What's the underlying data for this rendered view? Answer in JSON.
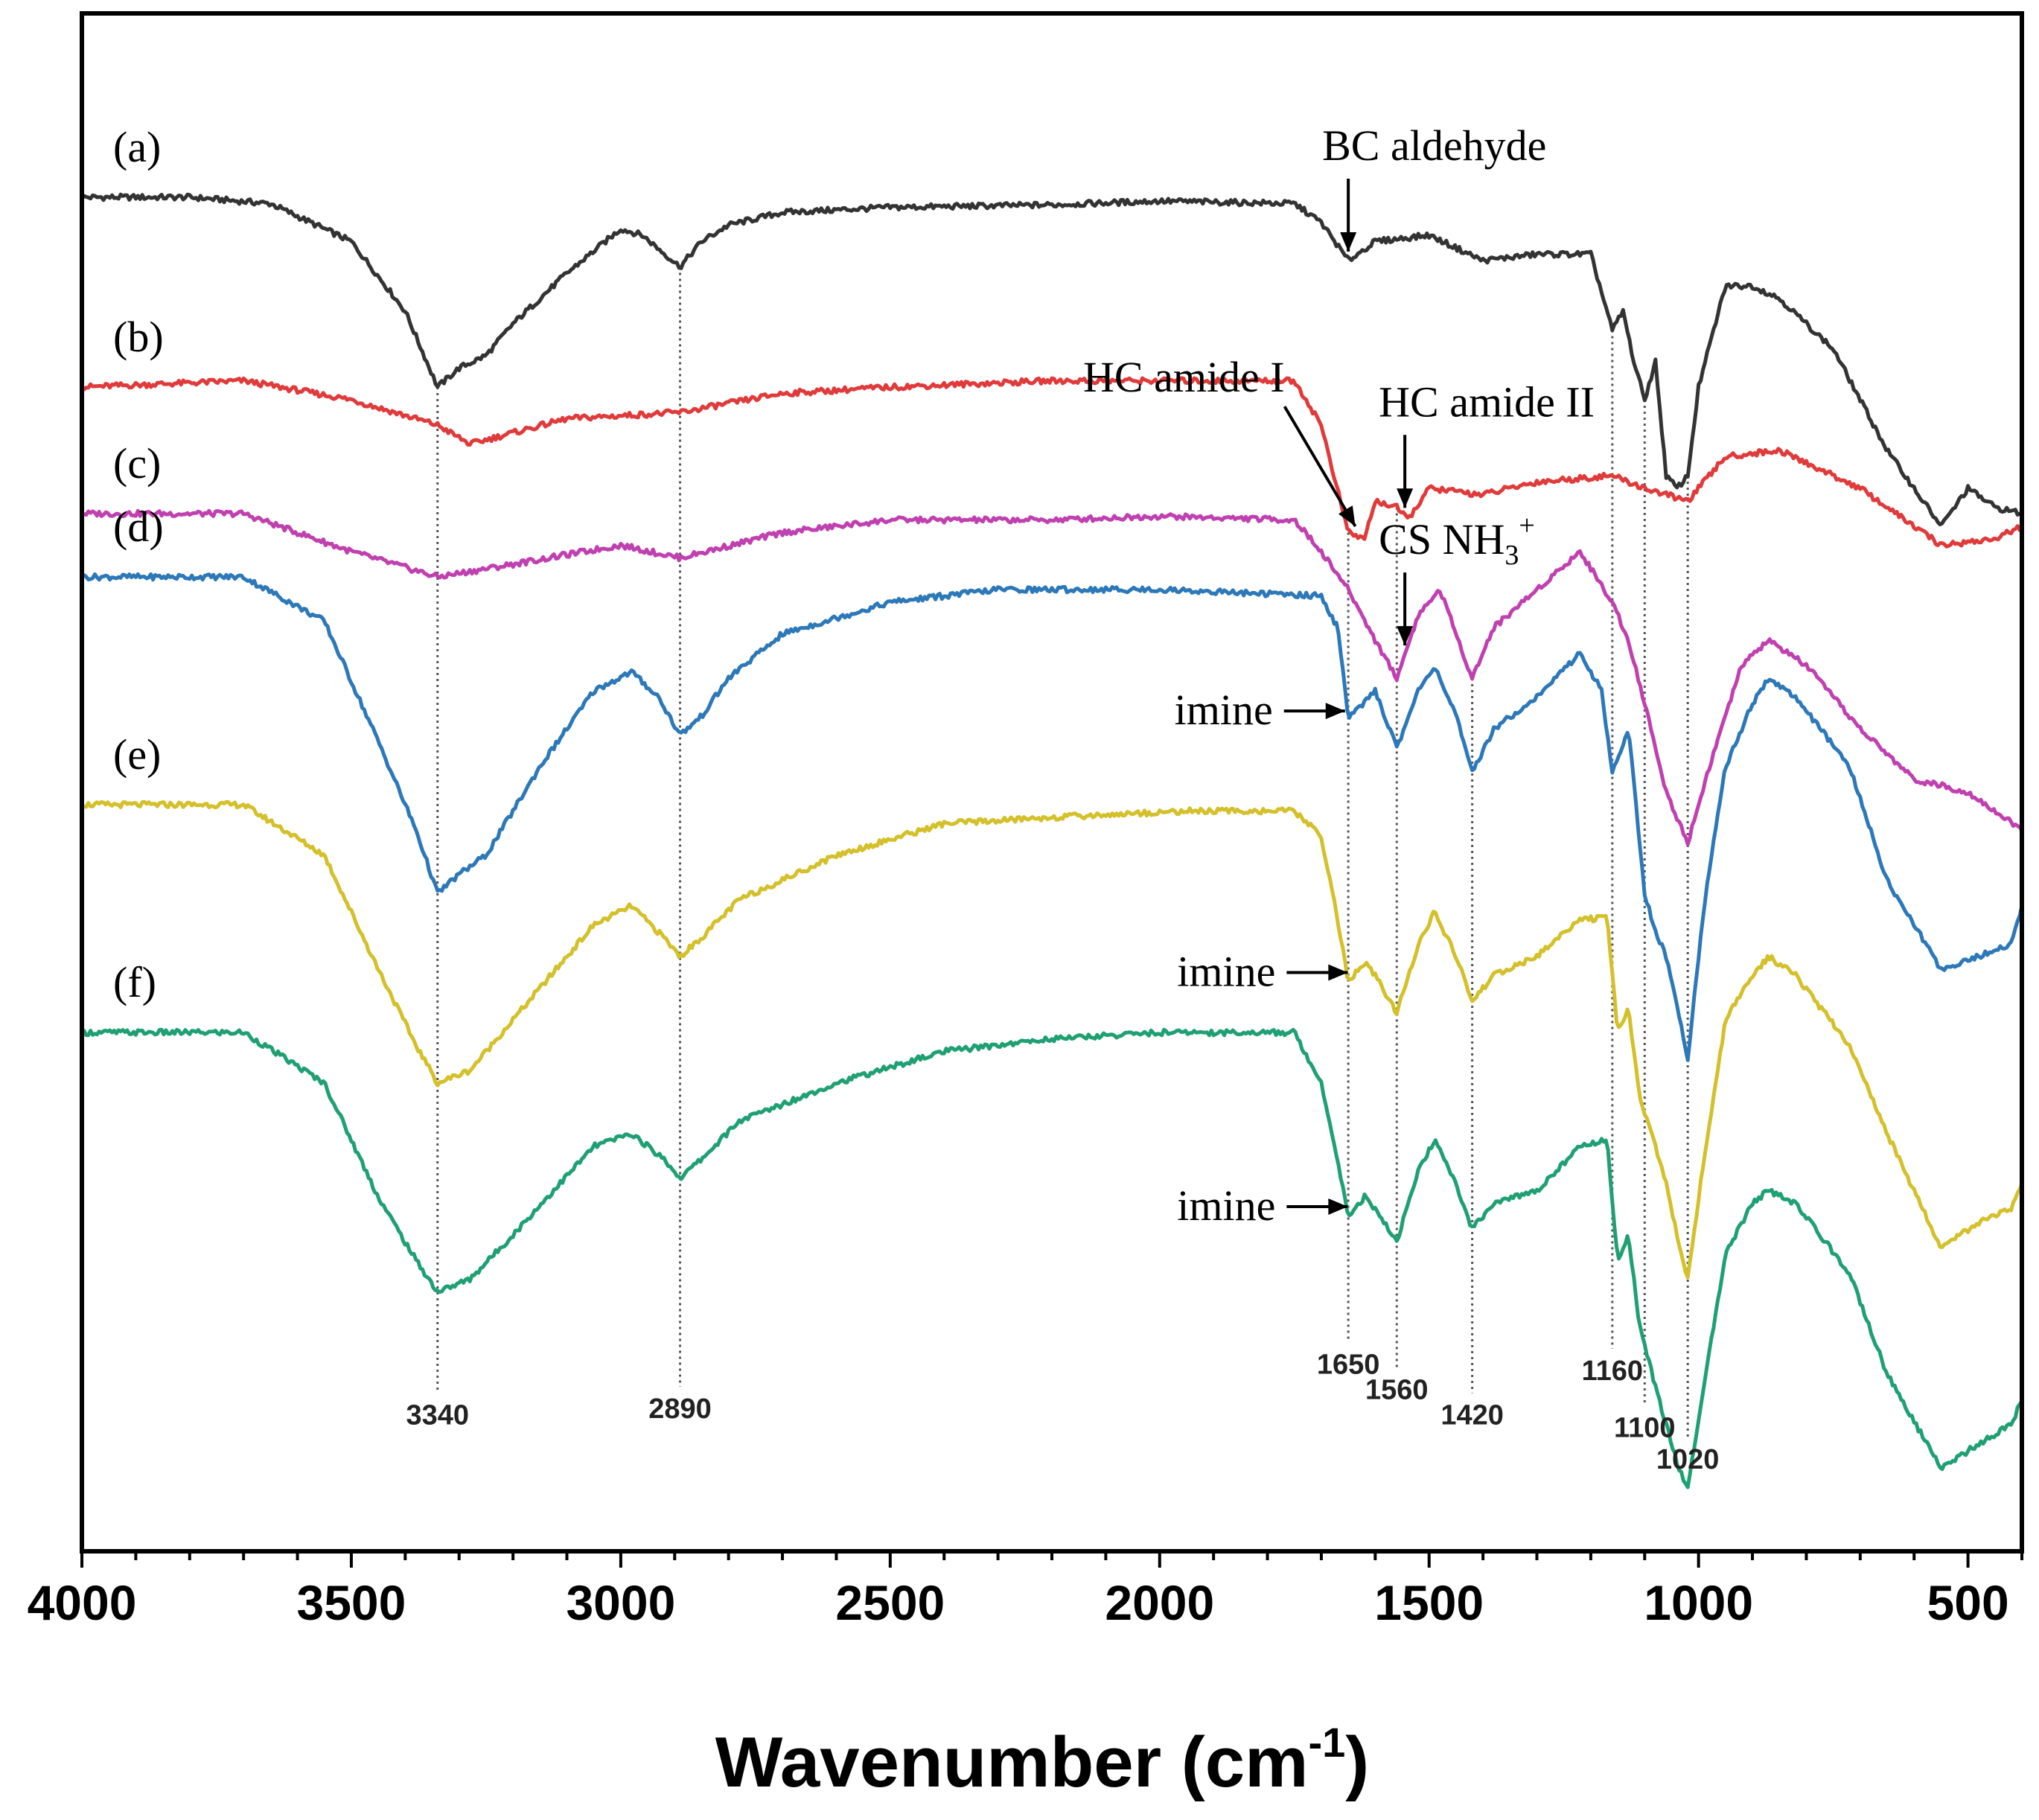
{
  "chart_data": {
    "type": "line",
    "title": "",
    "xlabel": "Wavenumber (cm",
    "xlabel_sup": "-1",
    "xlabel_close": ")",
    "ylabel": "",
    "xlim": [
      4000,
      400
    ],
    "x_ticks": [
      4000,
      3500,
      3000,
      2500,
      2000,
      1500,
      1000,
      500
    ],
    "grid": false,
    "series": [
      {
        "name": "(a)",
        "color": "#333333",
        "offset": 0.5,
        "points": [
          [
            4000,
            0
          ],
          [
            3800,
            0
          ],
          [
            3650,
            -0.05
          ],
          [
            3500,
            -0.35
          ],
          [
            3400,
            -0.9
          ],
          [
            3340,
            -1.5
          ],
          [
            3300,
            -1.35
          ],
          [
            3250,
            -1.25
          ],
          [
            3200,
            -1.0
          ],
          [
            3100,
            -0.6
          ],
          [
            3000,
            -0.25
          ],
          [
            2960,
            -0.3
          ],
          [
            2890,
            -0.55
          ],
          [
            2850,
            -0.35
          ],
          [
            2800,
            -0.22
          ],
          [
            2700,
            -0.12
          ],
          [
            2500,
            -0.08
          ],
          [
            2200,
            -0.06
          ],
          [
            2000,
            -0.03
          ],
          [
            1750,
            -0.05
          ],
          [
            1700,
            -0.2
          ],
          [
            1650,
            -0.5
          ],
          [
            1600,
            -0.35
          ],
          [
            1500,
            -0.3
          ],
          [
            1400,
            -0.5
          ],
          [
            1300,
            -0.45
          ],
          [
            1200,
            -0.45
          ],
          [
            1160,
            -1.05
          ],
          [
            1140,
            -0.9
          ],
          [
            1120,
            -1.3
          ],
          [
            1100,
            -1.6
          ],
          [
            1080,
            -1.3
          ],
          [
            1060,
            -2.2
          ],
          [
            1040,
            -2.3
          ],
          [
            1020,
            -2.2
          ],
          [
            1000,
            -1.5
          ],
          [
            950,
            -0.7
          ],
          [
            900,
            -0.7
          ],
          [
            850,
            -0.8
          ],
          [
            750,
            -1.2
          ],
          [
            650,
            -2.0
          ],
          [
            550,
            -2.6
          ],
          [
            500,
            -2.3
          ],
          [
            450,
            -2.45
          ],
          [
            400,
            -2.5
          ]
        ]
      },
      {
        "name": "(b)",
        "color": "#e03a3a",
        "offset": 2.0,
        "points": [
          [
            4000,
            0
          ],
          [
            3700,
            0.05
          ],
          [
            3500,
            -0.1
          ],
          [
            3340,
            -0.3
          ],
          [
            3280,
            -0.45
          ],
          [
            3100,
            -0.25
          ],
          [
            2890,
            -0.2
          ],
          [
            2700,
            -0.05
          ],
          [
            2500,
            0
          ],
          [
            2200,
            0.05
          ],
          [
            2000,
            0.05
          ],
          [
            1750,
            0.05
          ],
          [
            1700,
            -0.3
          ],
          [
            1650,
            -1.15
          ],
          [
            1620,
            -1.2
          ],
          [
            1600,
            -0.9
          ],
          [
            1560,
            -0.95
          ],
          [
            1540,
            -1.05
          ],
          [
            1500,
            -0.8
          ],
          [
            1400,
            -0.85
          ],
          [
            1300,
            -0.75
          ],
          [
            1160,
            -0.7
          ],
          [
            1100,
            -0.8
          ],
          [
            1020,
            -0.9
          ],
          [
            950,
            -0.55
          ],
          [
            850,
            -0.5
          ],
          [
            700,
            -0.8
          ],
          [
            550,
            -1.25
          ],
          [
            450,
            -1.2
          ],
          [
            400,
            -1.1
          ]
        ]
      },
      {
        "name": "(c)",
        "color": "#c040b0",
        "offset": 3.0,
        "points": [
          [
            4000,
            0
          ],
          [
            3700,
            0
          ],
          [
            3500,
            -0.3
          ],
          [
            3340,
            -0.5
          ],
          [
            3200,
            -0.4
          ],
          [
            3000,
            -0.25
          ],
          [
            2890,
            -0.35
          ],
          [
            2700,
            -0.15
          ],
          [
            2500,
            -0.05
          ],
          [
            2200,
            -0.05
          ],
          [
            2000,
            -0.02
          ],
          [
            1750,
            -0.05
          ],
          [
            1700,
            -0.3
          ],
          [
            1650,
            -0.6
          ],
          [
            1600,
            -1.0
          ],
          [
            1560,
            -1.3
          ],
          [
            1520,
            -0.8
          ],
          [
            1480,
            -0.6
          ],
          [
            1420,
            -1.3
          ],
          [
            1380,
            -0.9
          ],
          [
            1300,
            -0.6
          ],
          [
            1220,
            -0.3
          ],
          [
            1160,
            -0.7
          ],
          [
            1130,
            -1.0
          ],
          [
            1100,
            -1.5
          ],
          [
            1060,
            -2.2
          ],
          [
            1020,
            -2.6
          ],
          [
            980,
            -2.0
          ],
          [
            920,
            -1.2
          ],
          [
            870,
            -1.0
          ],
          [
            800,
            -1.2
          ],
          [
            700,
            -1.7
          ],
          [
            600,
            -2.1
          ],
          [
            500,
            -2.2
          ],
          [
            450,
            -2.35
          ],
          [
            400,
            -2.5
          ]
        ]
      },
      {
        "name": "(d)",
        "color": "#2c78b8",
        "offset": 3.5,
        "points": [
          [
            4000,
            0
          ],
          [
            3700,
            0
          ],
          [
            3550,
            -0.35
          ],
          [
            3450,
            -1.3
          ],
          [
            3380,
            -2.0
          ],
          [
            3340,
            -2.5
          ],
          [
            3300,
            -2.35
          ],
          [
            3250,
            -2.2
          ],
          [
            3150,
            -1.5
          ],
          [
            3050,
            -0.9
          ],
          [
            2980,
            -0.75
          ],
          [
            2930,
            -0.95
          ],
          [
            2890,
            -1.25
          ],
          [
            2850,
            -1.1
          ],
          [
            2800,
            -0.8
          ],
          [
            2700,
            -0.45
          ],
          [
            2500,
            -0.2
          ],
          [
            2300,
            -0.1
          ],
          [
            2000,
            -0.1
          ],
          [
            1700,
            -0.15
          ],
          [
            1670,
            -0.4
          ],
          [
            1650,
            -1.1
          ],
          [
            1620,
            -1.0
          ],
          [
            1600,
            -0.9
          ],
          [
            1560,
            -1.35
          ],
          [
            1520,
            -0.9
          ],
          [
            1490,
            -0.7
          ],
          [
            1450,
            -1.1
          ],
          [
            1420,
            -1.55
          ],
          [
            1380,
            -1.2
          ],
          [
            1300,
            -0.95
          ],
          [
            1220,
            -0.6
          ],
          [
            1180,
            -0.9
          ],
          [
            1160,
            -1.55
          ],
          [
            1130,
            -1.2
          ],
          [
            1100,
            -2.5
          ],
          [
            1080,
            -2.8
          ],
          [
            1060,
            -3.0
          ],
          [
            1040,
            -3.4
          ],
          [
            1020,
            -3.8
          ],
          [
            990,
            -2.6
          ],
          [
            950,
            -1.5
          ],
          [
            900,
            -1.0
          ],
          [
            870,
            -0.8
          ],
          [
            820,
            -0.95
          ],
          [
            720,
            -1.5
          ],
          [
            650,
            -2.4
          ],
          [
            550,
            -3.1
          ],
          [
            480,
            -3.0
          ],
          [
            420,
            -2.9
          ],
          [
            400,
            -2.6
          ]
        ]
      },
      {
        "name": "(e)",
        "color": "#d4c02a",
        "offset": 5.3,
        "points": [
          [
            4000,
            0
          ],
          [
            3700,
            0
          ],
          [
            3550,
            -0.4
          ],
          [
            3450,
            -1.3
          ],
          [
            3380,
            -1.9
          ],
          [
            3340,
            -2.2
          ],
          [
            3280,
            -2.1
          ],
          [
            3200,
            -1.7
          ],
          [
            3050,
            -0.95
          ],
          [
            2980,
            -0.8
          ],
          [
            2920,
            -1.05
          ],
          [
            2890,
            -1.2
          ],
          [
            2850,
            -1.05
          ],
          [
            2780,
            -0.75
          ],
          [
            2600,
            -0.4
          ],
          [
            2400,
            -0.15
          ],
          [
            2200,
            -0.1
          ],
          [
            1950,
            -0.05
          ],
          [
            1750,
            -0.05
          ],
          [
            1700,
            -0.25
          ],
          [
            1670,
            -0.9
          ],
          [
            1650,
            -1.4
          ],
          [
            1620,
            -1.25
          ],
          [
            1600,
            -1.35
          ],
          [
            1560,
            -1.65
          ],
          [
            1520,
            -1.1
          ],
          [
            1490,
            -0.85
          ],
          [
            1450,
            -1.2
          ],
          [
            1420,
            -1.55
          ],
          [
            1380,
            -1.35
          ],
          [
            1300,
            -1.2
          ],
          [
            1220,
            -0.9
          ],
          [
            1170,
            -0.9
          ],
          [
            1150,
            -1.8
          ],
          [
            1130,
            -1.6
          ],
          [
            1110,
            -2.3
          ],
          [
            1080,
            -2.7
          ],
          [
            1060,
            -3.0
          ],
          [
            1040,
            -3.4
          ],
          [
            1020,
            -3.75
          ],
          [
            990,
            -2.8
          ],
          [
            950,
            -1.7
          ],
          [
            900,
            -1.35
          ],
          [
            870,
            -1.2
          ],
          [
            820,
            -1.35
          ],
          [
            720,
            -1.9
          ],
          [
            650,
            -2.6
          ],
          [
            550,
            -3.5
          ],
          [
            480,
            -3.3
          ],
          [
            420,
            -3.2
          ],
          [
            400,
            -3.0
          ]
        ]
      },
      {
        "name": "(f)",
        "color": "#1fa073",
        "offset": 7.1,
        "points": [
          [
            4000,
            0
          ],
          [
            3700,
            0
          ],
          [
            3550,
            -0.4
          ],
          [
            3450,
            -1.3
          ],
          [
            3380,
            -1.8
          ],
          [
            3340,
            -2.05
          ],
          [
            3280,
            -1.95
          ],
          [
            3200,
            -1.6
          ],
          [
            3050,
            -0.9
          ],
          [
            2980,
            -0.8
          ],
          [
            2920,
            -1.0
          ],
          [
            2890,
            -1.15
          ],
          [
            2850,
            -1.0
          ],
          [
            2780,
            -0.7
          ],
          [
            2600,
            -0.4
          ],
          [
            2400,
            -0.15
          ],
          [
            2200,
            -0.05
          ],
          [
            2000,
            0
          ],
          [
            1750,
            0
          ],
          [
            1700,
            -0.4
          ],
          [
            1670,
            -1.0
          ],
          [
            1650,
            -1.45
          ],
          [
            1620,
            -1.3
          ],
          [
            1600,
            -1.4
          ],
          [
            1560,
            -1.65
          ],
          [
            1520,
            -1.1
          ],
          [
            1490,
            -0.85
          ],
          [
            1450,
            -1.2
          ],
          [
            1420,
            -1.55
          ],
          [
            1380,
            -1.35
          ],
          [
            1300,
            -1.25
          ],
          [
            1220,
            -0.9
          ],
          [
            1170,
            -0.85
          ],
          [
            1150,
            -1.8
          ],
          [
            1130,
            -1.6
          ],
          [
            1110,
            -2.3
          ],
          [
            1080,
            -2.8
          ],
          [
            1060,
            -3.1
          ],
          [
            1040,
            -3.4
          ],
          [
            1020,
            -3.6
          ],
          [
            990,
            -2.8
          ],
          [
            950,
            -1.75
          ],
          [
            900,
            -1.35
          ],
          [
            870,
            -1.25
          ],
          [
            820,
            -1.35
          ],
          [
            720,
            -1.9
          ],
          [
            650,
            -2.7
          ],
          [
            550,
            -3.45
          ],
          [
            480,
            -3.25
          ],
          [
            420,
            -3.1
          ],
          [
            400,
            -2.9
          ]
        ]
      }
    ],
    "peak_lines": [
      {
        "label": "3340",
        "x": 3340,
        "top_series": 0,
        "label_depth": 9.95
      },
      {
        "label": "2890",
        "x": 2890,
        "top_series": 0,
        "label_depth": 9.9
      },
      {
        "label": "1650",
        "x": 1650,
        "top_series": 1,
        "label_depth": 9.55
      },
      {
        "label": "1560",
        "x": 1560,
        "top_series": 1,
        "label_depth": 9.75
      },
      {
        "label": "1420",
        "x": 1420,
        "top_series": 2,
        "label_depth": 9.95
      },
      {
        "label": "1160",
        "x": 1160,
        "top_series": 0,
        "label_depth": 9.6
      },
      {
        "label": "1100",
        "x": 1100,
        "top_series": 0,
        "label_depth": 10.05
      },
      {
        "label": "1020",
        "x": 1020,
        "top_series": 0,
        "label_depth": 10.3
      }
    ],
    "annotations": [
      {
        "text": "BC aldehyde",
        "target_x": 1650,
        "series": 0
      },
      {
        "text": "HC amide I",
        "target_x": 1630,
        "series": 1
      },
      {
        "text": "HC amide II",
        "target_x": 1545,
        "series": 1
      },
      {
        "text": "CS NH",
        "sub": "3",
        "sup": "+",
        "target_x": 1545,
        "series": 2
      },
      {
        "text": "imine",
        "target_x": 1645,
        "series": 3
      },
      {
        "text": "imine",
        "target_x": 1640,
        "series": 4
      },
      {
        "text": "imine",
        "target_x": 1640,
        "series": 5
      }
    ]
  }
}
